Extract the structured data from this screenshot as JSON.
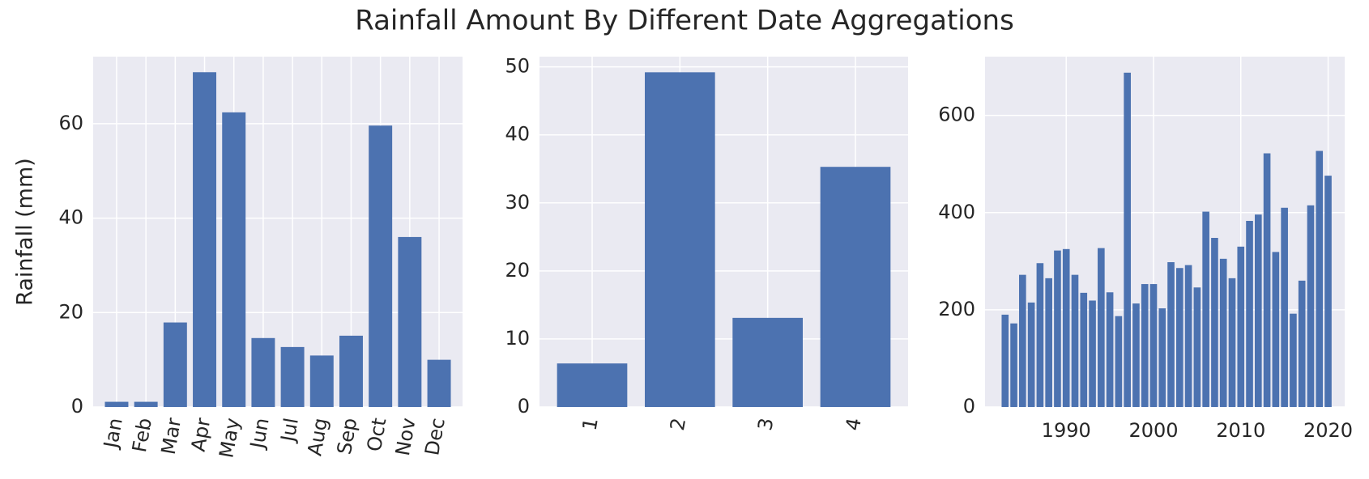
{
  "title": "Rainfall Amount By Different Date Aggregations",
  "chart_data": [
    {
      "type": "bar",
      "ylabel": "Rainfall (mm)",
      "categories": [
        "Jan",
        "Feb",
        "Mar",
        "Apr",
        "May",
        "Jun",
        "Jul",
        "Aug",
        "Sep",
        "Oct",
        "Nov",
        "Dec"
      ],
      "values": [
        1.1,
        1.1,
        17.9,
        70.9,
        62.4,
        14.6,
        12.7,
        10.9,
        15.1,
        59.6,
        36,
        10
      ],
      "color": "#4c72b0",
      "ylim": [
        0,
        74.2
      ],
      "yticks": [
        0,
        20,
        40,
        60
      ],
      "grid": true
    },
    {
      "type": "bar",
      "categories": [
        "1",
        "2",
        "3",
        "4"
      ],
      "values": [
        6.4,
        49.2,
        13.1,
        35.3
      ],
      "color": "#4c72b0",
      "ylim": [
        0,
        51.5
      ],
      "yticks": [
        0,
        10,
        20,
        30,
        40,
        50
      ],
      "grid": true
    },
    {
      "type": "bar",
      "x": [
        1983,
        1984,
        1985,
        1986,
        1987,
        1988,
        1989,
        1990,
        1991,
        1992,
        1993,
        1994,
        1995,
        1996,
        1997,
        1998,
        1999,
        2000,
        2001,
        2002,
        2003,
        2004,
        2005,
        2006,
        2007,
        2008,
        2009,
        2010,
        2011,
        2012,
        2013,
        2014,
        2015,
        2016,
        2017,
        2018,
        2019,
        2020
      ],
      "values": [
        190,
        172,
        272,
        215,
        296,
        265,
        322,
        325,
        272,
        235,
        219,
        327,
        236,
        187,
        688,
        213,
        253,
        253,
        203,
        298,
        286,
        292,
        246,
        402,
        348,
        305,
        265,
        330,
        383,
        396,
        522,
        319,
        410,
        192,
        260,
        415,
        527,
        476
      ],
      "color": "#4c72b0",
      "xlim": [
        1980.7,
        2021.9
      ],
      "xticks": [
        1990,
        2000,
        2010,
        2020
      ],
      "ylim": [
        0,
        721
      ],
      "yticks": [
        0,
        200,
        400,
        600
      ],
      "grid": true
    }
  ]
}
